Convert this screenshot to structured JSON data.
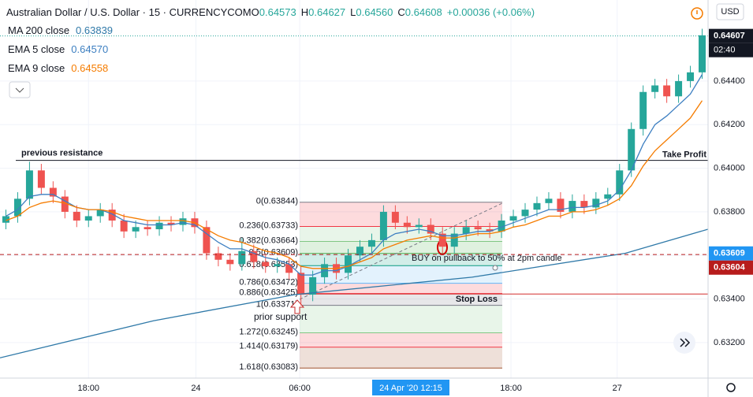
{
  "chart_data": {
    "type": "candlestick",
    "title": "Australian Dollar / U.S. Dollar · 15 · CURRENCYCOM",
    "ohlc_legend": [
      {
        "label": "O",
        "value": "0.64573"
      },
      {
        "label": "H",
        "value": "0.64627"
      },
      {
        "label": "L",
        "value": "0.64560"
      },
      {
        "label": "C",
        "value": "0.64608"
      }
    ],
    "change": "+0.00036 (+0.06%)",
    "currency": "USD",
    "up_color": "#26a69a",
    "down_color": "#ef5350",
    "open": [
      0.6375,
      0.6378,
      0.6386,
      0.6399,
      0.6391,
      0.6387,
      0.638,
      0.6376,
      0.6378,
      0.6381,
      0.6376,
      0.6371,
      0.6373,
      0.6372,
      0.6375,
      0.6374,
      0.6377,
      0.6373,
      0.6361,
      0.6358,
      0.6356,
      0.6362,
      0.6357,
      0.6355,
      0.6356,
      0.6352,
      0.6342,
      0.635,
      0.6356,
      0.6352,
      0.636,
      0.6364,
      0.6367,
      0.638,
      0.6375,
      0.6373,
      0.6374,
      0.637,
      0.6364,
      0.637,
      0.6373,
      0.6372,
      0.6371,
      0.6376,
      0.6378,
      0.6381,
      0.6384,
      0.6386,
      0.638,
      0.6385,
      0.6382,
      0.6386,
      0.6388,
      0.6399,
      0.6418,
      0.6435,
      0.6438,
      0.6433,
      0.644,
      0.6444
    ],
    "high": [
      0.6381,
      0.6389,
      0.6403,
      0.6402,
      0.6394,
      0.639,
      0.6383,
      0.6381,
      0.6384,
      0.6384,
      0.6379,
      0.6376,
      0.6376,
      0.6378,
      0.6378,
      0.638,
      0.638,
      0.6376,
      0.6364,
      0.6361,
      0.6368,
      0.6365,
      0.636,
      0.6359,
      0.6359,
      0.6355,
      0.6353,
      0.6359,
      0.6359,
      0.6363,
      0.6367,
      0.637,
      0.6383,
      0.6383,
      0.6378,
      0.6377,
      0.6377,
      0.6373,
      0.6373,
      0.6376,
      0.6376,
      0.6375,
      0.6379,
      0.6381,
      0.6384,
      0.6387,
      0.6389,
      0.6389,
      0.6388,
      0.6388,
      0.6389,
      0.6391,
      0.6402,
      0.6421,
      0.6438,
      0.6441,
      0.6441,
      0.6443,
      0.6447,
      0.6464
    ],
    "low": [
      0.6372,
      0.6375,
      0.6383,
      0.6388,
      0.6384,
      0.6377,
      0.6373,
      0.6373,
      0.6375,
      0.6373,
      0.6368,
      0.6368,
      0.6369,
      0.6369,
      0.6371,
      0.6371,
      0.637,
      0.6358,
      0.6355,
      0.6353,
      0.6353,
      0.6354,
      0.6352,
      0.6352,
      0.6349,
      0.6337,
      0.6339,
      0.6347,
      0.6349,
      0.6349,
      0.6357,
      0.6361,
      0.6364,
      0.6372,
      0.637,
      0.637,
      0.6367,
      0.6361,
      0.6361,
      0.6367,
      0.6369,
      0.6368,
      0.6368,
      0.6373,
      0.6375,
      0.6378,
      0.6381,
      0.6377,
      0.6377,
      0.6379,
      0.6379,
      0.6383,
      0.6385,
      0.6396,
      0.6415,
      0.6432,
      0.643,
      0.643,
      0.6437,
      0.6441
    ],
    "close": [
      0.6378,
      0.6386,
      0.6399,
      0.6391,
      0.6387,
      0.638,
      0.6376,
      0.6378,
      0.6381,
      0.6376,
      0.6371,
      0.6373,
      0.6372,
      0.6375,
      0.6374,
      0.6377,
      0.6373,
      0.6361,
      0.6358,
      0.6356,
      0.6362,
      0.6357,
      0.6355,
      0.6356,
      0.6352,
      0.6342,
      0.635,
      0.6356,
      0.6352,
      0.636,
      0.6364,
      0.6367,
      0.638,
      0.6375,
      0.6373,
      0.6374,
      0.637,
      0.6364,
      0.637,
      0.6373,
      0.6372,
      0.6371,
      0.6376,
      0.6378,
      0.6381,
      0.6384,
      0.6386,
      0.638,
      0.6385,
      0.6382,
      0.6386,
      0.6388,
      0.6399,
      0.6418,
      0.6435,
      0.6438,
      0.6433,
      0.644,
      0.6444,
      0.6461
    ],
    "series": [
      {
        "name": "MA 200 close",
        "legend_value": "0.63839",
        "color": "#2f79a8",
        "x": [
          0,
          13,
          25,
          40,
          53,
          60
        ],
        "values": [
          0.6313,
          0.633,
          0.6342,
          0.635,
          0.6361,
          0.6372
        ]
      },
      {
        "name": "EMA 5 close",
        "legend_value": "0.64570",
        "color": "#3d7fc1",
        "values": [
          0.6378,
          0.6381,
          0.6387,
          0.6388,
          0.6388,
          0.6385,
          0.6382,
          0.6381,
          0.6381,
          0.6379,
          0.6376,
          0.6375,
          0.6374,
          0.6374,
          0.6374,
          0.6375,
          0.6374,
          0.637,
          0.6366,
          0.6363,
          0.6363,
          0.6361,
          0.6359,
          0.6358,
          0.6356,
          0.6351,
          0.6351,
          0.6353,
          0.6353,
          0.6355,
          0.6358,
          0.6361,
          0.6367,
          0.637,
          0.6371,
          0.6372,
          0.6371,
          0.6369,
          0.6369,
          0.637,
          0.6371,
          0.6371,
          0.6373,
          0.6375,
          0.6377,
          0.6379,
          0.6381,
          0.6381,
          0.6382,
          0.6382,
          0.6383,
          0.6385,
          0.639,
          0.6399,
          0.6411,
          0.642,
          0.6424,
          0.6429,
          0.6434,
          0.6443
        ]
      },
      {
        "name": "EMA 9 close",
        "legend_value": "0.64558",
        "color": "#f57c00",
        "values": [
          0.6376,
          0.6378,
          0.6382,
          0.6384,
          0.6385,
          0.6384,
          0.6382,
          0.6381,
          0.6381,
          0.638,
          0.6378,
          0.6377,
          0.6376,
          0.6376,
          0.6376,
          0.6376,
          0.6375,
          0.6372,
          0.6369,
          0.6367,
          0.6366,
          0.6364,
          0.6362,
          0.6361,
          0.6359,
          0.6355,
          0.6354,
          0.6354,
          0.6354,
          0.6355,
          0.6357,
          0.6359,
          0.6363,
          0.6365,
          0.6367,
          0.6368,
          0.6369,
          0.6368,
          0.6368,
          0.6369,
          0.637,
          0.637,
          0.6371,
          0.6373,
          0.6374,
          0.6376,
          0.6378,
          0.6378,
          0.638,
          0.638,
          0.6381,
          0.6383,
          0.6386,
          0.6392,
          0.6401,
          0.6408,
          0.6413,
          0.6418,
          0.6423,
          0.6431
        ]
      }
    ],
    "xlim": [
      0,
      60
    ],
    "xticks": [
      {
        "value": 7.5,
        "label": "18:00"
      },
      {
        "value": 16.6,
        "label": "24"
      },
      {
        "value": 25.4,
        "label": "06:00"
      },
      {
        "value": 43.3,
        "label": "18:00"
      },
      {
        "value": 52.3,
        "label": "27"
      }
    ],
    "crosshair_label": "24 Apr '20   12:15",
    "ylim": [
      0.63037,
      0.64772
    ],
    "yticks": [
      {
        "value": 0.632,
        "label": "0.63200"
      },
      {
        "value": 0.634,
        "label": "0.63400"
      },
      {
        "value": 0.636,
        "label": "0.63600"
      },
      {
        "value": 0.638,
        "label": "0.63800"
      },
      {
        "value": 0.64,
        "label": "0.64000"
      },
      {
        "value": 0.642,
        "label": "0.64200"
      },
      {
        "value": 0.644,
        "label": "0.64400"
      }
    ],
    "grid": true,
    "price_labels": [
      {
        "value": 0.64607,
        "label": "0.64607",
        "color": "#131722"
      },
      {
        "value": 0.63609,
        "label": "0.63609",
        "color": "#2196f3"
      },
      {
        "value": 0.63604,
        "label": "0.63604",
        "color": "#b71c1c"
      }
    ],
    "countdown": "02:40",
    "fibonacci": [
      {
        "label": "0(0.63844)",
        "value": 0.63844,
        "color": "#787b86"
      },
      {
        "label": "0.236(0.63733)",
        "value": 0.63733,
        "color": "#f23645"
      },
      {
        "label": "0.382(0.63664)",
        "value": 0.63664,
        "color": "#81c784"
      },
      {
        "label": "0.5(0.63609)",
        "value": 0.63609,
        "color": "#4caf50"
      },
      {
        "label": "0.618(0.63553)",
        "value": 0.63553,
        "color": "#089981"
      },
      {
        "label": "0.786(0.63472)",
        "value": 0.63472,
        "color": "#64b5f6"
      },
      {
        "label": "0.886(0.63425)",
        "value": 0.63425,
        "color": "#f23645"
      },
      {
        "label": "1(0.63371)",
        "value": 0.63371,
        "color": "#787b86"
      },
      {
        "label": "1.272(0.63245)",
        "value": 0.63245,
        "color": "#81c784"
      },
      {
        "label": "1.414(0.63179)",
        "value": 0.63179,
        "color": "#f23645"
      },
      {
        "label": "1.618(0.63083)",
        "value": 0.63083,
        "color": "#a0522d"
      }
    ],
    "annotations": {
      "previous_resistance": {
        "text": "previous resistance",
        "value": 0.64036
      },
      "take_profit": "Take Profit",
      "stop_loss": {
        "text": "Stop Loss",
        "value": 0.63423
      },
      "prior_support": "prior support",
      "buy_note": "BUY on pullback to 50% at 2pm candle"
    }
  }
}
